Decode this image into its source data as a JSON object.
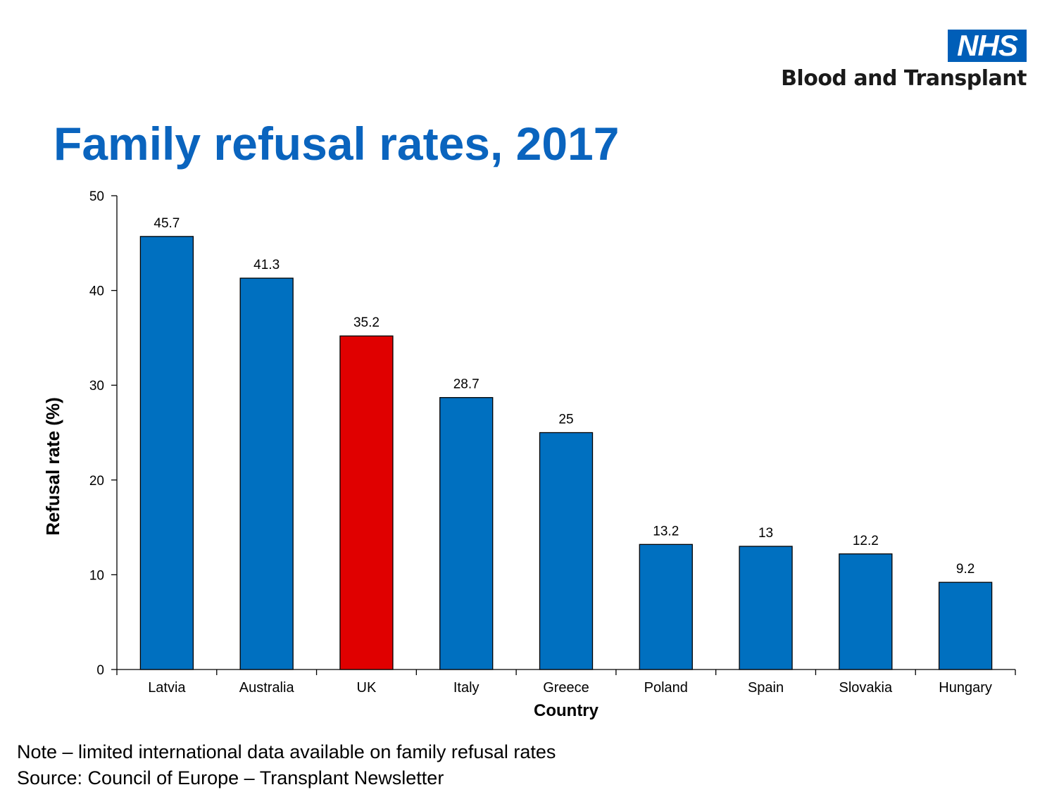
{
  "logo": {
    "brand": "NHS",
    "organisation": "Blood and Transplant"
  },
  "title": "Family refusal rates, 2017",
  "notes": {
    "note": "Note – limited international data available on family refusal rates",
    "source": "Source: Council of Europe – Transplant Newsletter"
  },
  "colors": {
    "bar": "#0070c0",
    "highlight": "#e00000",
    "title": "#0a64be",
    "nhs_blue": "#005eb8"
  },
  "chart_data": {
    "type": "bar",
    "title": "Family refusal rates, 2017",
    "xlabel": "Country",
    "ylabel": "Refusal rate (%)",
    "ylim": [
      0,
      50
    ],
    "yticks": [
      0,
      10,
      20,
      30,
      40,
      50
    ],
    "grid": false,
    "categories": [
      "Latvia",
      "Australia",
      "UK",
      "Italy",
      "Greece",
      "Poland",
      "Spain",
      "Slovakia",
      "Hungary"
    ],
    "values": [
      45.7,
      41.3,
      35.2,
      28.7,
      25,
      13.2,
      13,
      12.2,
      9.2
    ],
    "value_labels": [
      "45.7",
      "41.3",
      "35.2",
      "28.7",
      "25",
      "13.2",
      "13",
      "12.2",
      "9.2"
    ],
    "highlight": "UK"
  }
}
